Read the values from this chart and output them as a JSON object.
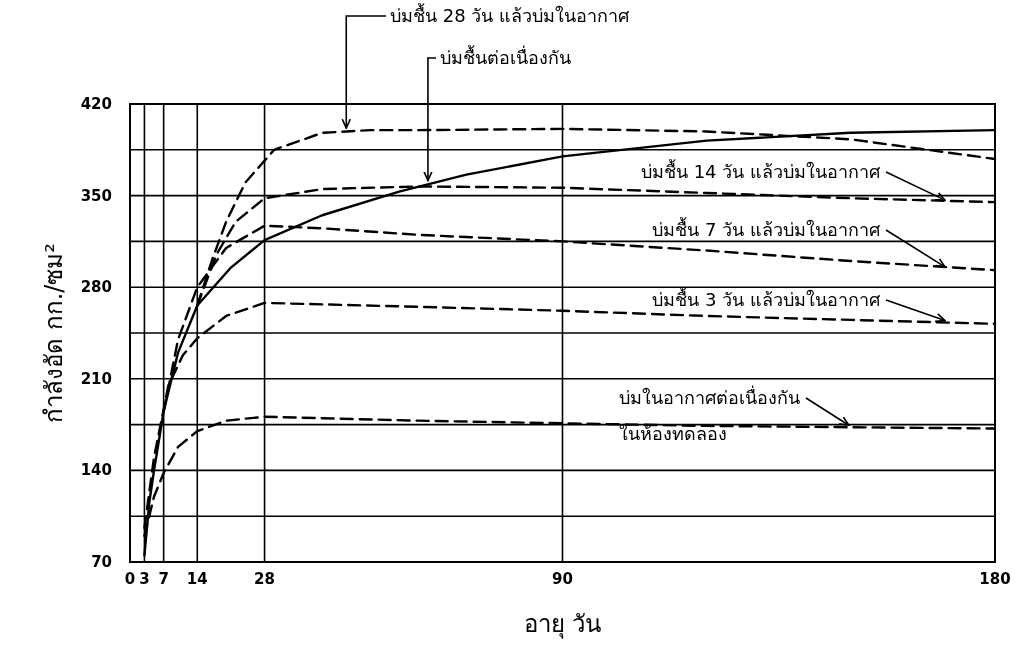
{
  "chart_data": {
    "type": "line",
    "xlabel": "อายุ  วัน",
    "ylabel": "กำลังอัด  กก./ซม²",
    "xlim": [
      0,
      180
    ],
    "xticks": [
      0,
      3,
      7,
      14,
      28,
      90,
      180
    ],
    "ylim": [
      70,
      420
    ],
    "yticks": [
      70,
      {
        "value": 105,
        "label": null
      },
      140,
      {
        "value": 175,
        "label": null
      },
      210,
      {
        "value": 245,
        "label": null
      },
      280,
      {
        "value": 315,
        "label": null
      },
      350,
      {
        "value": 385,
        "label": null
      },
      420
    ],
    "grid": true,
    "series": [
      {
        "color": "#000000",
        "line_style": "solid",
        "x": [
          3,
          4,
          5,
          7,
          10,
          14,
          21,
          28,
          40,
          56,
          70,
          90,
          120,
          150,
          180
        ],
        "values": [
          75,
          115,
          140,
          185,
          230,
          266,
          295,
          316,
          335,
          353,
          366,
          380,
          392,
          398,
          400
        ]
      },
      {
        "color": "#000000",
        "line_style": "dashed",
        "x": [
          14,
          17,
          20,
          24,
          30,
          40,
          50,
          60,
          90,
          120,
          150,
          180
        ],
        "values": [
          266,
          300,
          330,
          360,
          385,
          398,
          400,
          400,
          401,
          399,
          393,
          378
        ]
      },
      {
        "color": "#000000",
        "line_style": "dashed",
        "x": [
          14,
          18,
          22,
          28,
          40,
          60,
          90,
          120,
          150,
          180
        ],
        "values": [
          266,
          305,
          330,
          348,
          355,
          357,
          356,
          352,
          348,
          345
        ]
      },
      {
        "color": "#000000",
        "line_style": "dashed",
        "x": [
          7,
          10,
          14,
          20,
          28,
          40,
          60,
          90,
          120,
          150,
          180
        ],
        "values": [
          185,
          240,
          280,
          310,
          327,
          325,
          320,
          315,
          308,
          300,
          293
        ]
      },
      {
        "color": "#000000",
        "line_style": "dashed",
        "x": [
          3,
          5,
          8,
          11,
          14,
          20,
          28,
          60,
          90,
          120,
          150,
          180
        ],
        "values": [
          96,
          150,
          205,
          228,
          241,
          258,
          268,
          265,
          262,
          258,
          255,
          252
        ]
      },
      {
        "color": "#000000",
        "line_style": "dashed",
        "x": [
          3,
          5,
          7,
          10,
          14,
          20,
          28,
          60,
          90,
          120,
          150,
          180
        ],
        "values": [
          90,
          120,
          138,
          158,
          170,
          178,
          181,
          178,
          176,
          174,
          173,
          172
        ]
      }
    ],
    "annotations": [
      {
        "text": "บ่มชื้น 28 วัน  แล้วบ่มในอากาศ",
        "x": 45,
        "y": 400
      },
      {
        "text": "บ่มชื้นต่อเนื่องกัน",
        "x": 62,
        "y": 360
      },
      {
        "text": "บ่มชื้น 14 วัน แล้วบ่มในอากาศ",
        "x": 170,
        "y": 345
      },
      {
        "text": "บ่มชื้น 7 วัน แล้วบ่มในอากาศ",
        "x": 170,
        "y": 294
      },
      {
        "text": "บ่มชื้น 3 วัน แล้วบ่มในอากาศ",
        "x": 170,
        "y": 253
      },
      {
        "text": "บ่มในอากาศต่อเนื่องกัน",
        "x": 150,
        "y": 173
      },
      "ในห้องทดลอง"
    ]
  }
}
